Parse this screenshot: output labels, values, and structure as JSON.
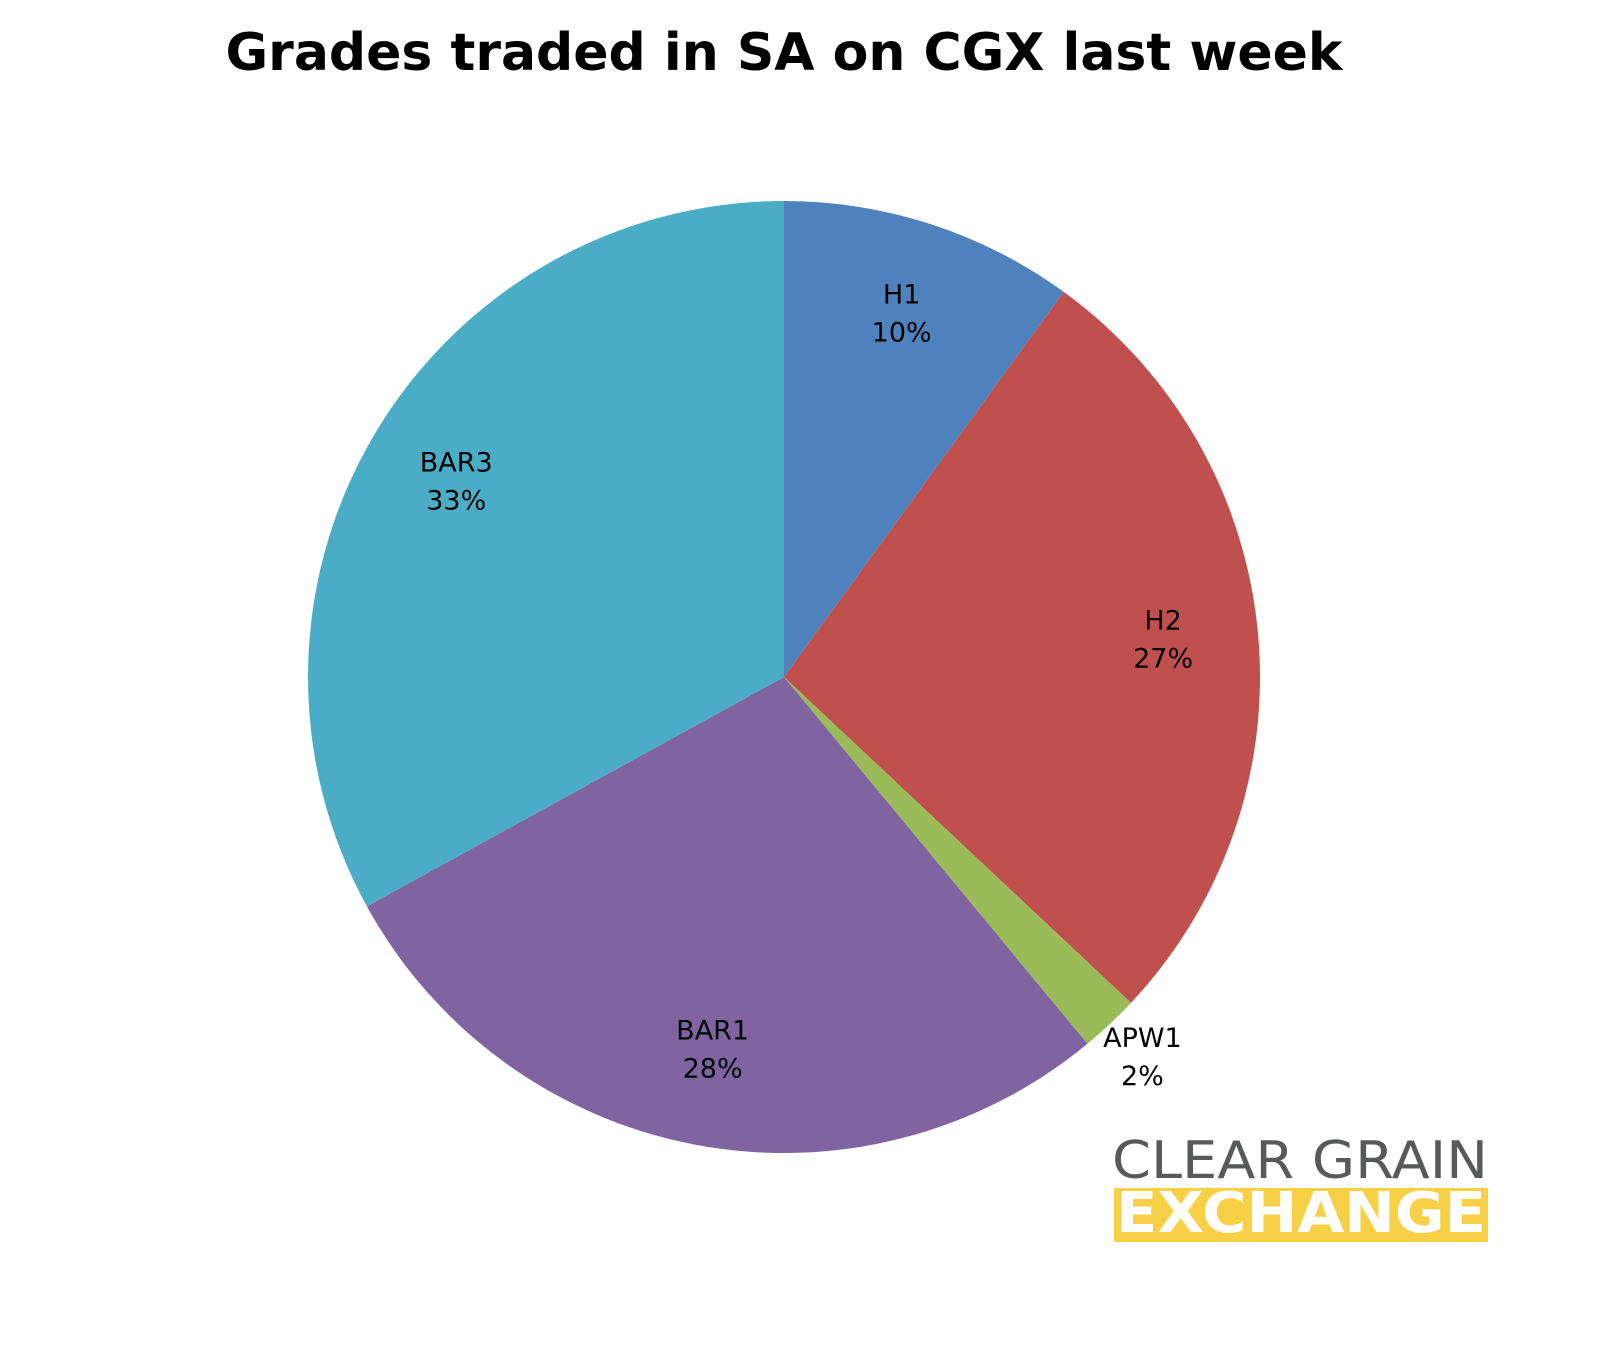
{
  "chart_data": {
    "type": "pie",
    "title": "Grades traded in SA on CGX last week",
    "categories": [
      "H1",
      "H2",
      "APW1",
      "BAR1",
      "BAR3"
    ],
    "values": [
      10,
      27,
      2,
      28,
      33
    ],
    "value_labels": [
      "10%",
      "27%",
      "2%",
      "28%",
      "33%"
    ],
    "colors": [
      "#4f81bd",
      "#c0504d",
      "#9bbb59",
      "#8064a2",
      "#4bacc6"
    ]
  },
  "logo": {
    "line1": "CLEAR GRAIN",
    "line2": "EXCHANGE"
  }
}
